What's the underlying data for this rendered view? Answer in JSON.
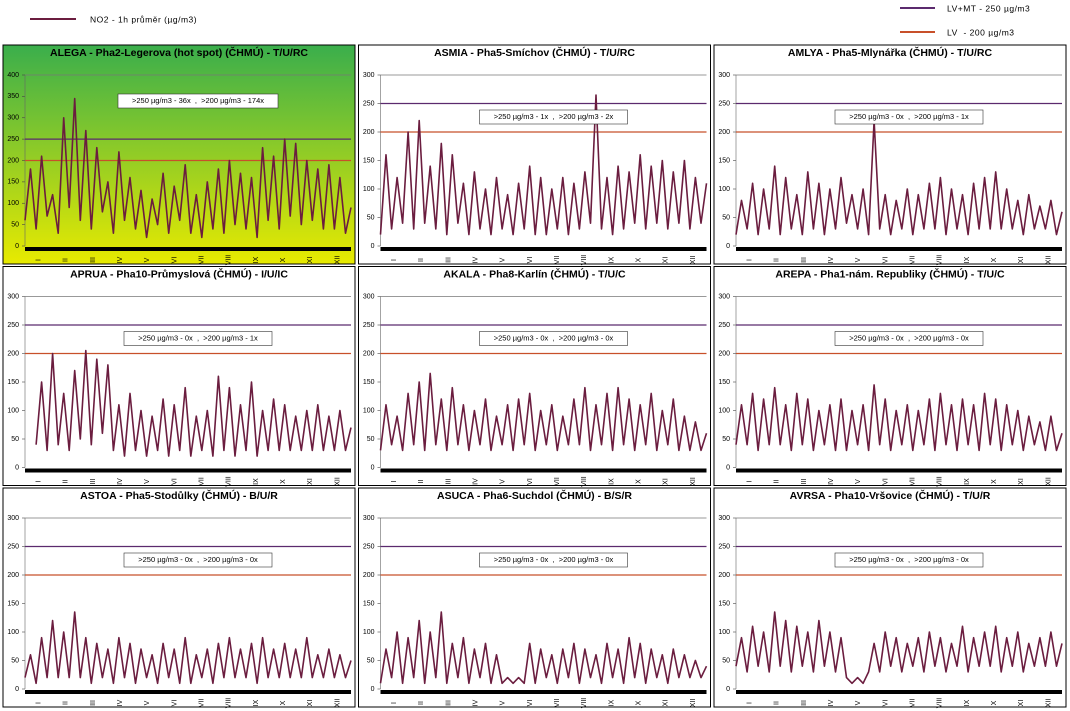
{
  "legend": {
    "series": {
      "name": "NO2 - 1h průměr (µg/m3)",
      "color": "#6b1d3f"
    },
    "reference_lines": [
      {
        "name": "LV+MT - 250 µg/m3",
        "color": "#5b2a6e",
        "value": 250
      },
      {
        "name": "LV  - 200 µg/m3",
        "color": "#c8502a",
        "value": 200
      }
    ]
  },
  "months": [
    "I",
    "II",
    "III",
    "IV",
    "V",
    "VI",
    "VII",
    "VIII",
    "IX",
    "X",
    "XI",
    "XII"
  ],
  "chart_data": [
    {
      "type": "line",
      "title": "ALEGA - Pha2-Legerova (hot spot) (ČHMÚ) - T/U/RC",
      "annotation": ">250 µg/m3 - 36x  ,  >200 µg/m3 - 174x",
      "background": {
        "top": "#3aae4c",
        "bottom": "#e8ea00"
      },
      "ylim": [
        0,
        400
      ],
      "yticks": [
        0,
        50,
        100,
        150,
        200,
        250,
        300,
        350,
        400
      ],
      "values": [
        60,
        180,
        40,
        210,
        70,
        120,
        30,
        300,
        90,
        345,
        60,
        270,
        40,
        230,
        80,
        150,
        30,
        220,
        60,
        160,
        40,
        130,
        20,
        110,
        50,
        170,
        30,
        140,
        60,
        190,
        30,
        120,
        20,
        150,
        40,
        180,
        30,
        200,
        50,
        170,
        40,
        160,
        20,
        230,
        60,
        210,
        40,
        250,
        70,
        240,
        50,
        200,
        60,
        180,
        40,
        190,
        40,
        160,
        30,
        90
      ]
    },
    {
      "type": "line",
      "title": "ASMIA - Pha5-Smíchov (ČHMÚ) - T/U/RC",
      "annotation": ">250 µg/m3 - 1x  ,  >200 µg/m3 - 2x",
      "ylim": [
        0,
        300
      ],
      "yticks": [
        0,
        50,
        100,
        150,
        200,
        250,
        300
      ],
      "values": [
        20,
        160,
        30,
        120,
        40,
        200,
        30,
        220,
        40,
        140,
        30,
        180,
        20,
        160,
        40,
        110,
        20,
        130,
        30,
        100,
        20,
        120,
        30,
        90,
        20,
        110,
        30,
        140,
        20,
        120,
        20,
        100,
        30,
        120,
        20,
        110,
        30,
        130,
        40,
        265,
        30,
        120,
        20,
        140,
        30,
        130,
        40,
        160,
        30,
        140,
        40,
        150,
        30,
        130,
        40,
        150,
        30,
        120,
        40,
        110
      ]
    },
    {
      "type": "line",
      "title": "AMLYA - Pha5-Mlynářka (ČHMÚ) - T/U/RC",
      "annotation": ">250 µg/m3 - 0x  ,  >200 µg/m3 - 1x",
      "ylim": [
        0,
        300
      ],
      "yticks": [
        0,
        50,
        100,
        150,
        200,
        250,
        300
      ],
      "values": [
        20,
        80,
        30,
        110,
        20,
        100,
        30,
        140,
        20,
        120,
        30,
        90,
        20,
        130,
        30,
        110,
        20,
        100,
        30,
        120,
        40,
        90,
        30,
        100,
        20,
        220,
        30,
        90,
        20,
        80,
        30,
        100,
        20,
        90,
        30,
        110,
        30,
        120,
        20,
        100,
        30,
        90,
        20,
        110,
        30,
        120,
        30,
        130,
        30,
        100,
        30,
        80,
        20,
        90,
        30,
        70,
        30,
        80,
        20,
        60
      ]
    },
    {
      "type": "line",
      "title": "APRUA - Pha10-Průmyslová (ČHMÚ) - I/U/IC",
      "annotation": ">250 µg/m3 - 0x  ,  >200 µg/m3 - 1x",
      "ylim": [
        0,
        300
      ],
      "yticks": [
        0,
        50,
        100,
        150,
        200,
        250,
        300
      ],
      "values": [
        null,
        null,
        40,
        150,
        30,
        200,
        40,
        130,
        30,
        170,
        50,
        205,
        40,
        190,
        60,
        180,
        30,
        110,
        20,
        130,
        30,
        100,
        20,
        90,
        30,
        120,
        20,
        110,
        30,
        140,
        20,
        90,
        30,
        100,
        20,
        160,
        30,
        140,
        20,
        110,
        30,
        150,
        20,
        100,
        30,
        120,
        30,
        110,
        30,
        90,
        30,
        100,
        30,
        110,
        30,
        90,
        30,
        100,
        30,
        70
      ]
    },
    {
      "type": "line",
      "title": "AKALA - Pha8-Karlín (ČHMÚ) - T/U/C",
      "annotation": ">250 µg/m3 - 0x  ,  >200 µg/m3 - 0x",
      "ylim": [
        0,
        300
      ],
      "yticks": [
        0,
        50,
        100,
        150,
        200,
        250,
        300
      ],
      "values": [
        30,
        110,
        40,
        90,
        30,
        130,
        40,
        150,
        30,
        165,
        40,
        120,
        30,
        140,
        40,
        110,
        30,
        100,
        40,
        120,
        30,
        90,
        40,
        110,
        30,
        120,
        40,
        130,
        30,
        100,
        40,
        110,
        30,
        90,
        40,
        120,
        40,
        140,
        30,
        110,
        40,
        130,
        30,
        140,
        40,
        120,
        30,
        110,
        40,
        130,
        30,
        100,
        40,
        120,
        30,
        90,
        30,
        80,
        30,
        60
      ]
    },
    {
      "type": "line",
      "title": "AREPA - Pha1-nám. Republiky (ČHMÚ) - T/U/C",
      "annotation": ">250 µg/m3 - 0x  ,  >200 µg/m3 - 0x",
      "ylim": [
        0,
        300
      ],
      "yticks": [
        0,
        50,
        100,
        150,
        200,
        250,
        300
      ],
      "values": [
        40,
        110,
        40,
        130,
        30,
        120,
        40,
        140,
        40,
        110,
        30,
        130,
        40,
        120,
        30,
        100,
        40,
        110,
        30,
        120,
        30,
        100,
        40,
        110,
        30,
        145,
        40,
        120,
        30,
        100,
        40,
        110,
        30,
        100,
        40,
        120,
        30,
        130,
        40,
        110,
        30,
        120,
        40,
        110,
        30,
        130,
        40,
        120,
        30,
        110,
        40,
        100,
        30,
        90,
        40,
        80,
        30,
        90,
        30,
        60
      ]
    },
    {
      "type": "line",
      "title": "ASTOA - Pha5-Stodůlky (ČHMÚ) - B/U/R",
      "annotation": ">250 µg/m3 - 0x  ,  >200 µg/m3 - 0x",
      "ylim": [
        0,
        300
      ],
      "yticks": [
        0,
        50,
        100,
        150,
        200,
        250,
        300
      ],
      "values": [
        20,
        60,
        10,
        90,
        20,
        120,
        20,
        100,
        20,
        135,
        20,
        90,
        10,
        80,
        20,
        70,
        10,
        90,
        20,
        80,
        10,
        70,
        20,
        60,
        10,
        80,
        20,
        70,
        10,
        90,
        10,
        60,
        20,
        70,
        10,
        80,
        20,
        90,
        20,
        70,
        20,
        80,
        10,
        90,
        20,
        70,
        20,
        80,
        20,
        70,
        20,
        90,
        20,
        60,
        20,
        70,
        20,
        60,
        20,
        50
      ]
    },
    {
      "type": "line",
      "title": "ASUCA - Pha6-Suchdol (ČHMÚ) - B/S/R",
      "annotation": ">250 µg/m3 - 0x  ,  >200 µg/m3 - 0x",
      "ylim": [
        0,
        300
      ],
      "yticks": [
        0,
        50,
        100,
        150,
        200,
        250,
        300
      ],
      "values": [
        10,
        70,
        20,
        100,
        10,
        90,
        20,
        120,
        10,
        100,
        20,
        135,
        10,
        80,
        20,
        90,
        10,
        70,
        20,
        80,
        10,
        60,
        10,
        20,
        10,
        20,
        10,
        80,
        10,
        70,
        20,
        60,
        10,
        70,
        20,
        80,
        10,
        70,
        20,
        60,
        10,
        80,
        20,
        70,
        10,
        90,
        20,
        80,
        10,
        70,
        20,
        60,
        10,
        70,
        20,
        60,
        20,
        50,
        20,
        40
      ]
    },
    {
      "type": "line",
      "title": "AVRSA - Pha10-Vršovice (ČHMÚ) - T/U/R",
      "annotation": ">250 µg/m3 - 0x  ,  >200 µg/m3 - 0x",
      "ylim": [
        0,
        300
      ],
      "yticks": [
        0,
        50,
        100,
        150,
        200,
        250,
        300
      ],
      "values": [
        40,
        90,
        30,
        110,
        40,
        100,
        30,
        135,
        40,
        120,
        30,
        110,
        40,
        100,
        30,
        120,
        40,
        100,
        30,
        90,
        20,
        10,
        20,
        10,
        30,
        80,
        30,
        100,
        40,
        90,
        30,
        80,
        40,
        90,
        30,
        100,
        40,
        90,
        30,
        80,
        40,
        110,
        30,
        90,
        40,
        100,
        40,
        110,
        30,
        90,
        40,
        100,
        30,
        80,
        40,
        90,
        40,
        100,
        40,
        80
      ]
    }
  ]
}
